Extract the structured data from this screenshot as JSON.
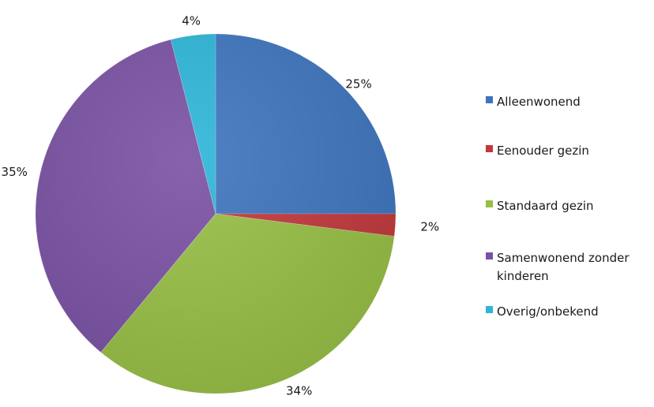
{
  "chart_data": {
    "type": "pie",
    "title": "",
    "categories": [
      "Alleenwonend",
      "Eenouder gezin",
      "Standaard gezin",
      "Samenwonend zonder kinderen",
      "Overig/onbekend"
    ],
    "values": [
      25,
      2,
      34,
      35,
      4
    ],
    "value_labels": [
      "25%",
      "2%",
      "34%",
      "35%",
      "4%"
    ],
    "legend_lines": [
      [
        "Alleenwonend"
      ],
      [
        "Eenouder gezin"
      ],
      [
        "Standaard gezin"
      ],
      [
        "Samenwonend zonder",
        "kinderen"
      ],
      [
        "Overig/onbekend"
      ]
    ],
    "colors": [
      "#3d74bd",
      "#c0383b",
      "#97be45",
      "#7a51a3",
      "#2db5d8"
    ],
    "legend_position": "right",
    "start_angle_deg": 0,
    "direction": "clockwise"
  }
}
